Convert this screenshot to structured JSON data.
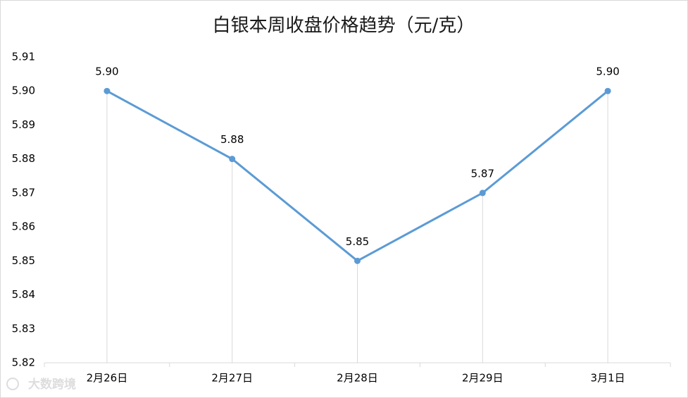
{
  "chart_data": {
    "type": "line",
    "title": "白银本周收盘价格趋势（元/克）",
    "categories": [
      "2月26日",
      "2月27日",
      "2月28日",
      "2月29日",
      "3月1日"
    ],
    "series": [
      {
        "name": "收盘价格",
        "color": "#5b9bd5",
        "values": [
          5.9,
          5.88,
          5.85,
          5.87,
          5.9
        ],
        "value_labels": [
          "5.90",
          "5.88",
          "5.85",
          "5.87",
          "5.90"
        ]
      }
    ],
    "ylim": [
      5.82,
      5.91
    ],
    "yticks": [
      5.82,
      5.83,
      5.84,
      5.85,
      5.86,
      5.87,
      5.88,
      5.89,
      {
        "value": 5.9,
        "label": "5.90"
      },
      5.91
    ],
    "drop_lines": true,
    "watermark": "大数跨境"
  }
}
